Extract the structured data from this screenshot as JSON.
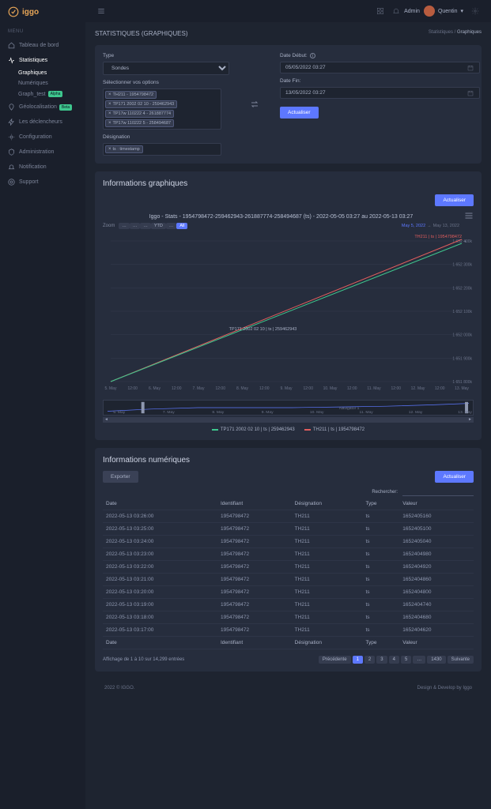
{
  "brand": {
    "name": "iggo",
    "accent": "#e8a657"
  },
  "topbar": {
    "role": "Admin",
    "user": "Quentin",
    "avatar_color": "#b85c3f"
  },
  "sidebar": {
    "menu_label": "MENU",
    "items": [
      {
        "label": "Tableau de bord",
        "icon": "home"
      },
      {
        "label": "Statistiques",
        "icon": "activity",
        "active": true,
        "children": [
          {
            "label": "Graphiques",
            "active": true
          },
          {
            "label": "Numériques"
          },
          {
            "label": "Graph_test",
            "badge": "Alpha",
            "badge_class": "badge-green"
          }
        ]
      },
      {
        "label": "Géolocalisation",
        "icon": "map-pin",
        "badge": "Beta",
        "badge_class": "badge-green"
      },
      {
        "label": "Les déclencheurs",
        "icon": "zap"
      },
      {
        "label": "Configuration",
        "icon": "settings"
      },
      {
        "label": "Administration",
        "icon": "shield"
      },
      {
        "label": "Notification",
        "icon": "bell"
      },
      {
        "label": "Support",
        "icon": "life-buoy"
      }
    ]
  },
  "page": {
    "title": "STATISTIQUES (GRAPHIQUES)",
    "breadcrumb": [
      "Statistiques",
      "Graphiques"
    ]
  },
  "filters": {
    "type_label": "Type",
    "type_value": "Sondes",
    "options_label": "Sélectionner vos options",
    "option_tags": [
      "TH211 - 1954798472",
      "TP171 2002 02 10 - 259462943",
      "TP17w 110222 4 - 261887774",
      "TP17w 110222 5 - 258494687"
    ],
    "designation_label": "Désignation",
    "designation_tags": [
      "ts : timestamp"
    ],
    "date_start_label": "Date Début:",
    "date_start_value": "05/05/2022 03:27",
    "date_end_label": "Date Fin:",
    "date_end_value": "13/05/2022 03:27",
    "submit_label": "Actualiser"
  },
  "chart_card": {
    "title": "Informations graphiques",
    "refresh_label": "Actualiser",
    "chart_title": "Iggo - Stats - 1954798472-259462943-261887774-258494687 (ts) - 2022-05-05 03:27 au 2022-05-13 03:27",
    "zoom_label": "Zoom",
    "zoom_buttons": [
      "…",
      "…",
      "…",
      "YTD",
      "…",
      "All"
    ],
    "zoom_active": "All",
    "zoom_range_from": "May 5, 2022",
    "zoom_range_to": "May 13, 2022",
    "navigator_label": "Navigator 1",
    "series": [
      {
        "name": "TP171 2002 02 10 | ts | 259462943",
        "color": "#3ec78e"
      },
      {
        "name": "TH211 | ts | 1954798472",
        "color": "#e05d5d"
      }
    ],
    "y_ticks": [
      "1 652 400k",
      "1 652 300k",
      "1 652 200k",
      "1 652 100k",
      "1 652 000k",
      "1 651 900k",
      "1 651 800k"
    ],
    "y_top_label": "1 651 467k",
    "x_ticks": [
      "5. May",
      "12:00",
      "6. May",
      "12:00",
      "7. May",
      "12:00",
      "8. May",
      "12:00",
      "9. May",
      "12:00",
      "10. May",
      "12:00",
      "11. May",
      "12:00",
      "12. May",
      "12:00",
      "13. May"
    ],
    "nav_ticks": [
      "6. May",
      "7. May",
      "8. May",
      "9. May",
      "10. May",
      "11. May",
      "12. May",
      "13. May"
    ],
    "series_green_label": "TP171 2002 02 10 | ts | 259462943",
    "series_red_label": "TH211 | ts | 1954798472"
  },
  "table_card": {
    "title": "Informations numériques",
    "export_label": "Exporter",
    "refresh_label": "Actualiser",
    "search_label": "Rechercher:",
    "columns": [
      "Date",
      "Identifiant",
      "Désignation",
      "Type",
      "Valeur"
    ],
    "rows": [
      [
        "2022-05-13 03:26:00",
        "1954798472",
        "TH211",
        "ts",
        "1652405160"
      ],
      [
        "2022-05-13 03:25:00",
        "1954798472",
        "TH211",
        "ts",
        "1652405100"
      ],
      [
        "2022-05-13 03:24:00",
        "1954798472",
        "TH211",
        "ts",
        "1652405040"
      ],
      [
        "2022-05-13 03:23:00",
        "1954798472",
        "TH211",
        "ts",
        "1652404980"
      ],
      [
        "2022-05-13 03:22:00",
        "1954798472",
        "TH211",
        "ts",
        "1652404920"
      ],
      [
        "2022-05-13 03:21:00",
        "1954798472",
        "TH211",
        "ts",
        "1652404860"
      ],
      [
        "2022-05-13 03:20:00",
        "1954798472",
        "TH211",
        "ts",
        "1652404800"
      ],
      [
        "2022-05-13 03:19:00",
        "1954798472",
        "TH211",
        "ts",
        "1652404740"
      ],
      [
        "2022-05-13 03:18:00",
        "1954798472",
        "TH211",
        "ts",
        "1652404680"
      ],
      [
        "2022-05-13 03:17:00",
        "1954798472",
        "TH211",
        "ts",
        "1652404620"
      ]
    ],
    "footer_info": "Affichage de 1 à 10 sur 14,299 entrées",
    "pagination": {
      "prev": "Précédente",
      "pages": [
        "1",
        "2",
        "3",
        "4",
        "5",
        "…",
        "1430"
      ],
      "active": "1",
      "next": "Suivante"
    }
  },
  "footer": {
    "left": "2022 © IGGO.",
    "right": "Design & Develop by Iggo"
  },
  "colors": {
    "bg": "#1e2430",
    "panel": "#262d3d",
    "sidebar": "#1a1f2b",
    "text": "#a8b0c5",
    "muted": "#6c748a",
    "primary": "#5d78ff"
  }
}
